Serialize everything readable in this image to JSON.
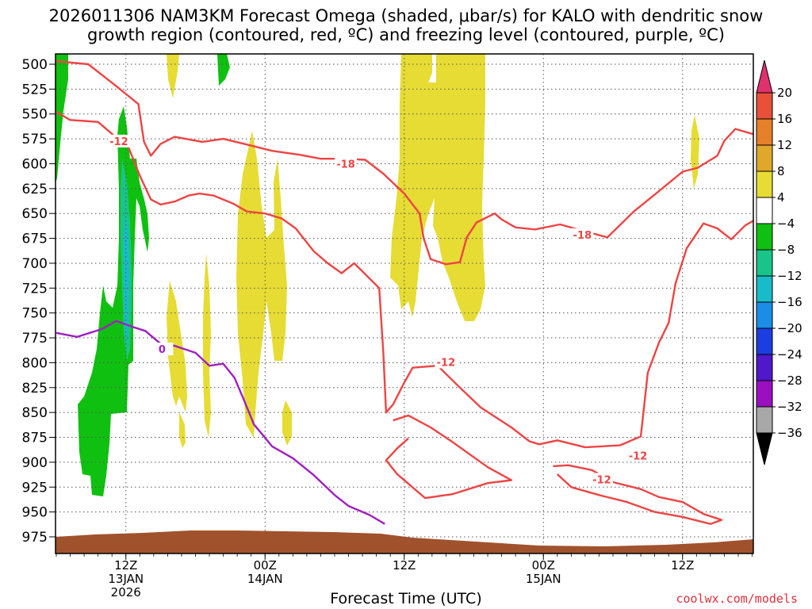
{
  "chart_data": {
    "type": "heatmap",
    "title_line1": "2026011306 NAM3KM Forecast Omega (shaded, μbar/s) for KALO with dendritic snow",
    "title_line2": "growth region (contoured, red, ºC) and freezing level (contoured, purple, ºC)",
    "xlabel": "Forecast Time (UTC)",
    "credit": "coolwx.com/models",
    "x_unit": "forecast hours from 2026011306",
    "x_range": [
      0,
      51
    ],
    "y_levels_hpa": [
      500,
      525,
      550,
      575,
      600,
      625,
      650,
      675,
      700,
      725,
      750,
      775,
      800,
      825,
      850,
      875,
      900,
      925,
      950,
      975
    ],
    "y_range_hpa": [
      500,
      985
    ],
    "x_ticks": [
      {
        "hour": 5,
        "line1": "12Z",
        "line2": "13JAN",
        "line3": "2026"
      },
      {
        "hour": 15,
        "line1": "00Z",
        "line2": "14JAN",
        "line3": ""
      },
      {
        "hour": 25,
        "line1": "12Z",
        "line2": "",
        "line3": ""
      },
      {
        "hour": 35,
        "line1": "00Z",
        "line2": "15JAN",
        "line3": ""
      },
      {
        "hour": 45,
        "line1": "12Z",
        "line2": "",
        "line3": ""
      }
    ],
    "grid": true,
    "colorbar": {
      "placement": "right",
      "ticks": [
        "20",
        "16",
        "12",
        "8",
        "4",
        "−4",
        "−8",
        "−12",
        "−16",
        "−20",
        "−24",
        "−28",
        "−32",
        "−36"
      ],
      "colors": [
        "#e0306e",
        "#e8503a",
        "#e6802a",
        "#e0a82a",
        "#e6dc34",
        "#ffffff",
        "#10c010",
        "#18c48a",
        "#18bcc8",
        "#1a8ee6",
        "#1a3ee0",
        "#5018c8",
        "#9a10c0",
        "#a8a8a8",
        "#000000"
      ]
    },
    "omega_color": {
      "ascent_weak": "#e6dc34",
      "descent_weak": "#10c010",
      "descent_mod": "#18c48a",
      "descent_strong": "#18bcc8"
    },
    "temperature_contours": [
      {
        "label": "-12",
        "color": "#ee4444",
        "points": [
          [
            0,
            548
          ],
          [
            1,
            556
          ],
          [
            2,
            557
          ],
          [
            3,
            558
          ],
          [
            4,
            570
          ],
          [
            4.5,
            578
          ],
          [
            5,
            577
          ],
          [
            6,
            612
          ],
          [
            6.8,
            636
          ],
          [
            7.5,
            641
          ],
          [
            8.5,
            638
          ],
          [
            9.5,
            632
          ],
          [
            10.3,
            630
          ],
          [
            11.3,
            632
          ],
          [
            12.7,
            640
          ],
          [
            13.7,
            648
          ],
          [
            15,
            650
          ],
          [
            16.2,
            655
          ],
          [
            17.2,
            665
          ],
          [
            18.5,
            688
          ],
          [
            19.5,
            700
          ],
          [
            20.5,
            710
          ],
          [
            21.4,
            700
          ],
          [
            23.2,
            725
          ],
          [
            23.5,
            790
          ],
          [
            23.7,
            850
          ],
          [
            24.2,
            842
          ],
          [
            25,
            820
          ],
          [
            25.6,
            805
          ],
          [
            27.4,
            803
          ],
          [
            29,
            825
          ],
          [
            30.5,
            845
          ],
          [
            32.7,
            865
          ],
          [
            34,
            879
          ],
          [
            34.7,
            882
          ],
          [
            36,
            878
          ],
          [
            38,
            885
          ],
          [
            40.5,
            883
          ],
          [
            42,
            874
          ],
          [
            42.5,
            810
          ],
          [
            43.3,
            780
          ],
          [
            44,
            760
          ],
          [
            44.5,
            720
          ],
          [
            45.3,
            685
          ],
          [
            46.5,
            660
          ],
          [
            47.5,
            665
          ],
          [
            48.5,
            676
          ],
          [
            49.5,
            662
          ],
          [
            51,
            650
          ]
        ]
      },
      {
        "label": "",
        "color": "#ee4444",
        "points": [
          [
            24.2,
            858
          ],
          [
            25.3,
            853
          ],
          [
            26.9,
            865
          ],
          [
            28.5,
            880
          ],
          [
            31,
            905
          ],
          [
            32.7,
            918
          ],
          [
            31,
            921
          ],
          [
            28.5,
            932
          ],
          [
            26.5,
            936
          ],
          [
            24.5,
            912
          ],
          [
            23.7,
            898
          ],
          [
            24.5,
            886
          ],
          [
            25.3,
            876
          ]
        ]
      },
      {
        "label": "-12",
        "color": "#ee4444",
        "points": [
          [
            35.7,
            904
          ],
          [
            36.8,
            903
          ],
          [
            38.5,
            908
          ],
          [
            40,
            920
          ],
          [
            42,
            927
          ],
          [
            43.3,
            935
          ],
          [
            45,
            940
          ],
          [
            46.5,
            952
          ],
          [
            47.8,
            958
          ],
          [
            47,
            962
          ],
          [
            45,
            955
          ],
          [
            43,
            950
          ],
          [
            41,
            940
          ],
          [
            39,
            933
          ],
          [
            37,
            925
          ],
          [
            36,
            912
          ]
        ]
      },
      {
        "label": "-18",
        "color": "#ee4444",
        "points": [
          [
            0,
            497
          ],
          [
            2.3,
            500
          ],
          [
            4.3,
            522
          ],
          [
            5.9,
            540
          ],
          [
            6.3,
            578
          ],
          [
            6.8,
            592
          ],
          [
            7.5,
            580
          ],
          [
            8.5,
            573
          ],
          [
            10.5,
            578
          ],
          [
            12,
            575
          ],
          [
            13.5,
            580
          ],
          [
            15.5,
            587
          ],
          [
            17.5,
            591
          ],
          [
            19,
            595
          ],
          [
            20.7,
            595
          ],
          [
            22.2,
            596
          ],
          [
            23.5,
            610
          ],
          [
            25,
            630
          ],
          [
            26.1,
            650
          ],
          [
            26.4,
            675
          ],
          [
            26.9,
            696
          ],
          [
            28,
            701
          ],
          [
            29,
            699
          ],
          [
            29.5,
            674
          ],
          [
            30.2,
            659
          ],
          [
            31.5,
            650
          ],
          [
            32,
            656
          ],
          [
            33,
            664
          ],
          [
            34.4,
            666
          ],
          [
            36.2,
            661
          ],
          [
            38,
            668
          ],
          [
            39.6,
            674
          ],
          [
            41.5,
            648
          ],
          [
            43,
            631
          ],
          [
            45,
            608
          ],
          [
            46.1,
            604
          ],
          [
            47.5,
            592
          ],
          [
            48,
            577
          ],
          [
            48.8,
            565
          ],
          [
            50,
            570
          ],
          [
            51,
            568
          ]
        ]
      },
      {
        "label": "0",
        "color": "#a020c0",
        "points": [
          [
            0,
            770
          ],
          [
            1.5,
            774
          ],
          [
            3.3,
            766
          ],
          [
            4.3,
            758
          ],
          [
            5.5,
            764
          ],
          [
            6.4,
            768
          ],
          [
            7.5,
            781
          ],
          [
            8.5,
            783
          ],
          [
            10,
            790
          ],
          [
            11,
            803
          ],
          [
            12,
            801
          ],
          [
            12.8,
            815
          ],
          [
            13.5,
            838
          ],
          [
            14.2,
            862
          ],
          [
            14.8,
            872
          ],
          [
            15.5,
            884
          ],
          [
            17,
            896
          ],
          [
            18.5,
            913
          ],
          [
            20,
            933
          ],
          [
            21,
            944
          ],
          [
            22.5,
            953
          ],
          [
            23.6,
            962
          ]
        ]
      }
    ],
    "label_positions": [
      [
        4.5,
        578,
        "-12"
      ],
      [
        20.8,
        601,
        "-18"
      ],
      [
        37.8,
        672,
        "-18"
      ],
      [
        28,
        800,
        "-12"
      ],
      [
        41.8,
        894,
        "-12"
      ],
      [
        39.2,
        918,
        "-12"
      ],
      [
        7.6,
        787,
        "0"
      ]
    ]
  }
}
